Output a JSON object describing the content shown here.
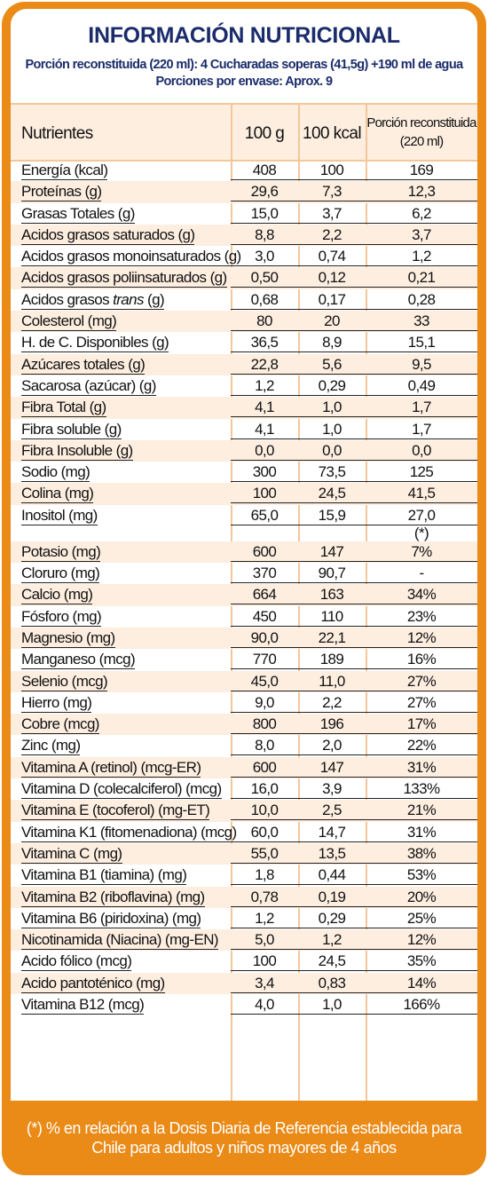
{
  "title": "INFORMACIÓN NUTRICIONAL",
  "subtitle_line1": "Porción reconstituida (220 ml): 4 Cucharadas soperas (41,5g) +190 ml de agua",
  "subtitle_line2": "Porciones por envase: Aprox. 9",
  "header": {
    "nutrients": "Nutrientes",
    "col1": "100 g",
    "col2": "100 kcal",
    "col3_line1": "Porción reconstituida",
    "col3_line2": "(220 ml)"
  },
  "rows": [
    {
      "name": "Energía (kcal)",
      "v1": "408",
      "v2": "100",
      "v3": "169"
    },
    {
      "name": "Proteínas (g)",
      "v1": "29,6",
      "v2": "7,3",
      "v3": "12,3"
    },
    {
      "name": "Grasas Totales (g)",
      "v1": "15,0",
      "v2": "3,7",
      "v3": "6,2"
    },
    {
      "name": "Acidos grasos saturados (g)",
      "v1": "8,8",
      "v2": "2,2",
      "v3": "3,7"
    },
    {
      "name": "Acidos grasos monoinsaturados (g)",
      "v1": "3,0",
      "v2": "0,74",
      "v3": "1,2"
    },
    {
      "name": "Acidos grasos poliinsaturados (g)",
      "v1": "0,50",
      "v2": "0,12",
      "v3": "0,21"
    },
    {
      "name_pre": "Acidos grasos ",
      "name_em": "trans",
      "name_post": " (g)",
      "v1": "0,68",
      "v2": "0,17",
      "v3": "0,28"
    },
    {
      "name": "Colesterol (mg)",
      "v1": "80",
      "v2": "20",
      "v3": "33"
    },
    {
      "name": "H. de C. Disponibles (g)",
      "v1": "36,5",
      "v2": "8,9",
      "v3": "15,1"
    },
    {
      "name": "Azúcares totales (g)",
      "v1": "22,8",
      "v2": "5,6",
      "v3": "9,5"
    },
    {
      "name": "Sacarosa (azúcar) (g)",
      "v1": "1,2",
      "v2": "0,29",
      "v3": "0,49"
    },
    {
      "name": "Fibra Total (g)",
      "v1": "4,1",
      "v2": "1,0",
      "v3": "1,7"
    },
    {
      "name": "Fibra soluble (g)",
      "v1": "4,1",
      "v2": "1,0",
      "v3": "1,7"
    },
    {
      "name": "Fibra Insoluble (g)",
      "v1": "0,0",
      "v2": "0,0",
      "v3": "0,0"
    },
    {
      "name": "Sodio (mg)",
      "v1": "300",
      "v2": "73,5",
      "v3": "125"
    },
    {
      "name": "Colina (mg)",
      "v1": "100",
      "v2": "24,5",
      "v3": "41,5"
    },
    {
      "name": "Inositol (mg)",
      "v1": "65,0",
      "v2": "15,9",
      "v3": "27,0",
      "v3b": "(*)"
    },
    {
      "name": "Potasio (mg)",
      "v1": "600",
      "v2": "147",
      "v3": "7%"
    },
    {
      "name": "Cloruro (mg)",
      "v1": "370",
      "v2": "90,7",
      "v3": "-"
    },
    {
      "name": "Calcio (mg)",
      "v1": "664",
      "v2": "163",
      "v3": "34%"
    },
    {
      "name": "Fósforo (mg)",
      "v1": "450",
      "v2": "110",
      "v3": "23%"
    },
    {
      "name": "Magnesio (mg)",
      "v1": "90,0",
      "v2": "22,1",
      "v3": "12%"
    },
    {
      "name": "Manganeso (mcg)",
      "v1": "770",
      "v2": "189",
      "v3": "16%"
    },
    {
      "name": "Selenio (mcg)",
      "v1": "45,0",
      "v2": "11,0",
      "v3": "27%"
    },
    {
      "name": "Hierro (mg)",
      "v1": "9,0",
      "v2": "2,2",
      "v3": "27%"
    },
    {
      "name": "Cobre (mcg)",
      "v1": "800",
      "v2": "196",
      "v3": "17%"
    },
    {
      "name": "Zinc (mg)",
      "v1": "8,0",
      "v2": "2,0",
      "v3": "22%"
    },
    {
      "name": "Vitamina A (retinol) (mcg-ER)",
      "v1": "600",
      "v2": "147",
      "v3": "31%"
    },
    {
      "name": "Vitamina D (colecalciferol) (mcg)",
      "v1": "16,0",
      "v2": "3,9",
      "v3": "133%"
    },
    {
      "name": "Vitamina E (tocoferol) (mg-ET)",
      "v1": "10,0",
      "v2": "2,5",
      "v3": "21%"
    },
    {
      "name": "Vitamina K1 (fitomenadiona) (mcg)",
      "v1": "60,0",
      "v2": "14,7",
      "v3": "31%"
    },
    {
      "name": "Vitamina C (mg)",
      "v1": "55,0",
      "v2": "13,5",
      "v3": "38%"
    },
    {
      "name": "Vitamina B1 (tiamina) (mg)",
      "v1": "1,8",
      "v2": "0,44",
      "v3": "53%"
    },
    {
      "name": "Vitamina B2 (riboflavina) (mg)",
      "v1": "0,78",
      "v2": "0,19",
      "v3": "20%"
    },
    {
      "name": "Vitamina B6 (piridoxina) (mg)",
      "v1": "1,2",
      "v2": "0,29",
      "v3": "25%"
    },
    {
      "name": "Nicotinamida (Niacina) (mg-EN)",
      "v1": "5,0",
      "v2": "1,2",
      "v3": "12%"
    },
    {
      "name": "Acido fólico (mcg)",
      "v1": "100",
      "v2": "24,5",
      "v3": "35%"
    },
    {
      "name": "Acido pantoténico (mg)",
      "v1": "3,4",
      "v2": "0,83",
      "v3": "14%"
    },
    {
      "name": "Vitamina B12 (mcg)",
      "v1": "4,0",
      "v2": "1,0",
      "v3": "166%"
    }
  ],
  "footnote_line1": "(*) % en relación a la Dosis Diaria de Referencia establecida para",
  "footnote_line2": "Chile para adultos y niños mayores de 4 años",
  "colors": {
    "border": "#ea8a17",
    "stripe": "#fdeee0",
    "title": "#1a2c6b"
  }
}
